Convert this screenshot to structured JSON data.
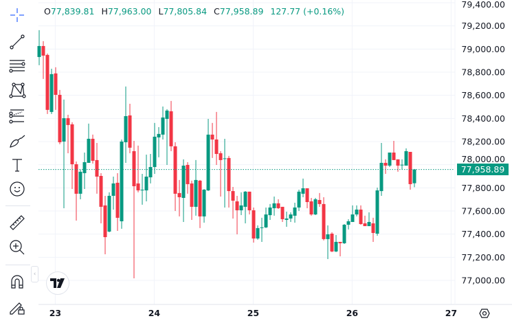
{
  "legend": {
    "open_label": "O",
    "open": "77,839.81",
    "high_label": "H",
    "high": "77,963.00",
    "low_label": "L",
    "low": "77,805.84",
    "close_label": "C",
    "close": "77,958.89",
    "change": "127.77 (+0.16%)"
  },
  "last_price_label": "77,958.89",
  "toolbar": {
    "tools": [
      "crosshair-icon",
      "trend-line-icon",
      "fib-retracement-icon",
      "xabcd-pattern-icon",
      "forecast-icon",
      "brush-icon",
      "text-icon",
      "emoji-icon",
      "ruler-icon",
      "zoom-in-icon",
      "magnet-icon",
      "lock-drawings-icon"
    ]
  },
  "colors": {
    "up": "#089981",
    "down": "#F23645",
    "crosshair": "#2962FF",
    "grid": "#f0f3fa"
  },
  "chart_data": {
    "type": "candlestick",
    "title": "",
    "xlabel": "",
    "ylabel": "",
    "ylim": [
      77000,
      79400
    ],
    "grid": true,
    "y_ticks": [
      "79,400.00",
      "79,200.00",
      "79,000.00",
      "78,800.00",
      "78,600.00",
      "78,400.00",
      "78,200.00",
      "78,000.00",
      "77,800.00",
      "77,600.00",
      "77,400.00",
      "77,200.00",
      "77,000.00"
    ],
    "x_ticks": [
      "23",
      "24",
      "25",
      "26",
      "27"
    ],
    "last_price": 77958.89,
    "candles_ohlc": [
      [
        78931,
        79163,
        78860,
        79026
      ],
      [
        79026,
        79068,
        78741,
        78943
      ],
      [
        78949,
        78961,
        78438,
        78474
      ],
      [
        78456,
        78830,
        78438,
        78783
      ],
      [
        78789,
        78842,
        78474,
        78604
      ],
      [
        78604,
        78646,
        78177,
        78194
      ],
      [
        78200,
        78563,
        77624,
        78402
      ],
      [
        78402,
        78432,
        78099,
        78343
      ],
      [
        78349,
        78367,
        77790,
        78004
      ],
      [
        78004,
        78028,
        77517,
        77749
      ],
      [
        77749,
        77957,
        77701,
        77939
      ],
      [
        77927,
        78105,
        77790,
        78022
      ],
      [
        78016,
        78355,
        78016,
        78224
      ],
      [
        78224,
        78260,
        78010,
        78034
      ],
      [
        78040,
        78188,
        77749,
        77897
      ],
      [
        77903,
        77927,
        77493,
        77636
      ],
      [
        77648,
        77731,
        77226,
        77374
      ],
      [
        77422,
        77761,
        77416,
        77731
      ],
      [
        77731,
        77897,
        77612,
        77838
      ],
      [
        77844,
        77927,
        77428,
        77541
      ],
      [
        77511,
        78218,
        77446,
        78200
      ],
      [
        78194,
        78676,
        78016,
        78420
      ],
      [
        78426,
        78527,
        78099,
        78147
      ],
      [
        78117,
        78206,
        77018,
        77814
      ],
      [
        77838,
        78165,
        77761,
        77778
      ],
      [
        77778,
        77921,
        77654,
        77784
      ],
      [
        77778,
        78087,
        77683,
        77897
      ],
      [
        77891,
        78093,
        77838,
        77980
      ],
      [
        77980,
        78361,
        77921,
        78242
      ],
      [
        78236,
        78325,
        78064,
        78266
      ],
      [
        78260,
        78503,
        78218,
        78408
      ],
      [
        78396,
        78480,
        77998,
        78468
      ],
      [
        78462,
        78551,
        78117,
        78159
      ],
      [
        78159,
        78194,
        77600,
        77749
      ],
      [
        77755,
        77868,
        77553,
        77719
      ],
      [
        77713,
        78046,
        77505,
        77992
      ],
      [
        77998,
        78022,
        77749,
        77832
      ],
      [
        77838,
        77862,
        77523,
        77636
      ],
      [
        77636,
        78040,
        77559,
        77868
      ],
      [
        77862,
        77868,
        77452,
        77553
      ],
      [
        77553,
        77790,
        77499,
        77784
      ],
      [
        77778,
        78396,
        77772,
        78260
      ],
      [
        78260,
        78361,
        78058,
        78218
      ],
      [
        78218,
        78456,
        77998,
        78093
      ],
      [
        78099,
        78117,
        77725,
        78040
      ],
      [
        78052,
        78224,
        77630,
        78055
      ],
      [
        78058,
        78076,
        77630,
        77772
      ],
      [
        77772,
        77808,
        77535,
        77689
      ],
      [
        77683,
        77731,
        77398,
        77606
      ],
      [
        77606,
        77761,
        77564,
        77648
      ],
      [
        77636,
        77772,
        77493,
        77767
      ],
      [
        77767,
        77767,
        77570,
        77606
      ],
      [
        77606,
        77630,
        77327,
        77362
      ],
      [
        77362,
        77475,
        77351,
        77452
      ],
      [
        77452,
        77541,
        77333,
        77458
      ],
      [
        77458,
        77630,
        77452,
        77570
      ],
      [
        77564,
        77660,
        77523,
        77630
      ],
      [
        77624,
        77725,
        77559,
        77666
      ],
      [
        77666,
        77701,
        77618,
        77624
      ],
      [
        77636,
        77636,
        77505,
        77529
      ],
      [
        77523,
        77594,
        77463,
        77535
      ],
      [
        77535,
        77588,
        77505,
        77570
      ],
      [
        77559,
        77671,
        77499,
        77630
      ],
      [
        77630,
        77784,
        77600,
        77767
      ],
      [
        77749,
        77880,
        77719,
        77796
      ],
      [
        77796,
        77796,
        77624,
        77677
      ],
      [
        77683,
        77713,
        77559,
        77570
      ],
      [
        77570,
        77713,
        77564,
        77701
      ],
      [
        77695,
        77755,
        77636,
        77660
      ],
      [
        77660,
        77719,
        77345,
        77357
      ],
      [
        77357,
        77475,
        77184,
        77398
      ],
      [
        77404,
        77416,
        77244,
        77250
      ],
      [
        77250,
        77392,
        77244,
        77333
      ],
      [
        77333,
        77333,
        77208,
        77321
      ],
      [
        77321,
        77487,
        77315,
        77481
      ],
      [
        77481,
        77529,
        77440,
        77511
      ],
      [
        77505,
        77648,
        77505,
        77570
      ],
      [
        77570,
        77648,
        77553,
        77612
      ],
      [
        77612,
        77648,
        77481,
        77487
      ],
      [
        77493,
        77559,
        77469,
        77469
      ],
      [
        77469,
        77588,
        77469,
        77505
      ],
      [
        77493,
        77541,
        77333,
        77410
      ],
      [
        77404,
        77802,
        77386,
        77778
      ],
      [
        77772,
        78188,
        77731,
        78016
      ],
      [
        78016,
        78046,
        77921,
        77992
      ],
      [
        77992,
        78105,
        77980,
        78105
      ],
      [
        78105,
        78206,
        78040,
        78040
      ],
      [
        78046,
        78046,
        77939,
        77992
      ],
      [
        77998,
        78046,
        77957,
        78000
      ],
      [
        77992,
        78141,
        77992,
        78117
      ],
      [
        78111,
        78111,
        77784,
        77832
      ],
      [
        77839.81,
        77963.0,
        77805.84,
        77958.89
      ]
    ]
  }
}
